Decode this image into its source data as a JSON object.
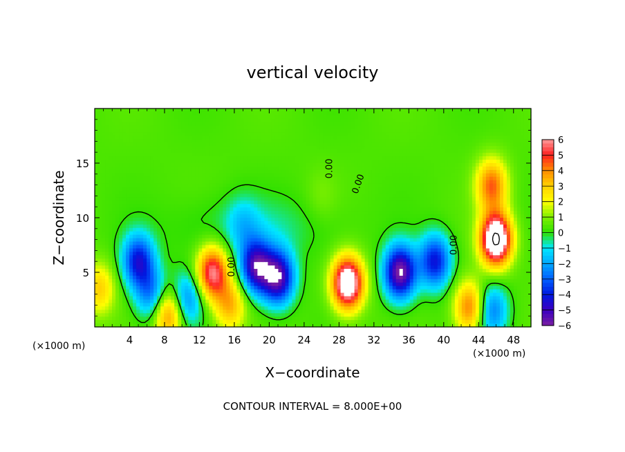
{
  "chart_data": {
    "type": "heatmap",
    "title": "vertical velocity",
    "xlabel": "X−coordinate",
    "ylabel": "Z−coordinate",
    "x_unit_left": "(×1000 m)",
    "x_unit_right": "(×1000 m)",
    "xlim": [
      0,
      50
    ],
    "ylim": [
      0,
      20
    ],
    "x_ticks": [
      "4",
      "8",
      "12",
      "16",
      "20",
      "24",
      "28",
      "32",
      "36",
      "40",
      "44",
      "48"
    ],
    "x_tick_values": [
      4,
      8,
      12,
      16,
      20,
      24,
      28,
      32,
      36,
      40,
      44,
      48
    ],
    "y_ticks": [
      "5",
      "10",
      "15"
    ],
    "y_tick_values": [
      5,
      10,
      15
    ],
    "footer": "CONTOUR INTERVAL = 8.000E+00",
    "contour_label": "0.00",
    "colorbar": {
      "min": -6,
      "max": 6,
      "ticks": [
        "6",
        "5",
        "4",
        "3",
        "2",
        "1",
        "0",
        "−1",
        "−2",
        "−3",
        "−4",
        "−5",
        "−6"
      ],
      "tick_values": [
        6,
        5,
        4,
        3,
        2,
        1,
        0,
        -1,
        -2,
        -3,
        -4,
        -5,
        -6
      ],
      "colors": [
        "#7a1fa2",
        "#3a00c0",
        "#0018e0",
        "#0060ff",
        "#00a8ff",
        "#00e8ff",
        "#30e000",
        "#80f000",
        "#ffff00",
        "#ffd000",
        "#ff8c00",
        "#ff2020",
        "#ff9a9a"
      ]
    },
    "features": [
      {
        "x": 0.5,
        "z": 3.5,
        "w": 2.6
      },
      {
        "x": 5.0,
        "z": 6.0,
        "w": -4.5
      },
      {
        "x": 6.5,
        "z": 3.0,
        "w": -3.0
      },
      {
        "x": 8.5,
        "z": 1.2,
        "w": 4.0
      },
      {
        "x": 10.5,
        "z": 2.5,
        "w": -3.0
      },
      {
        "x": 13.5,
        "z": 5.0,
        "w": 5.5
      },
      {
        "x": 15.5,
        "z": 2.0,
        "w": 3.0
      },
      {
        "x": 18.5,
        "z": 5.5,
        "w": -5.5
      },
      {
        "x": 21.0,
        "z": 4.5,
        "w": -6.0
      },
      {
        "x": 17.0,
        "z": 9.5,
        "w": -1.2
      },
      {
        "x": 29.0,
        "z": 4.0,
        "w": 7.5
      },
      {
        "x": 35.0,
        "z": 5.0,
        "w": -6.5
      },
      {
        "x": 39.0,
        "z": 6.0,
        "w": -4.5
      },
      {
        "x": 46.0,
        "z": 8.0,
        "w": 8.0
      },
      {
        "x": 45.5,
        "z": 13.0,
        "w": 4.0
      },
      {
        "x": 43.0,
        "z": 1.8,
        "w": 4.0
      },
      {
        "x": 45.5,
        "z": 1.5,
        "w": -3.0
      },
      {
        "x": 26.0,
        "z": 12.0,
        "w": 0.5
      }
    ]
  }
}
